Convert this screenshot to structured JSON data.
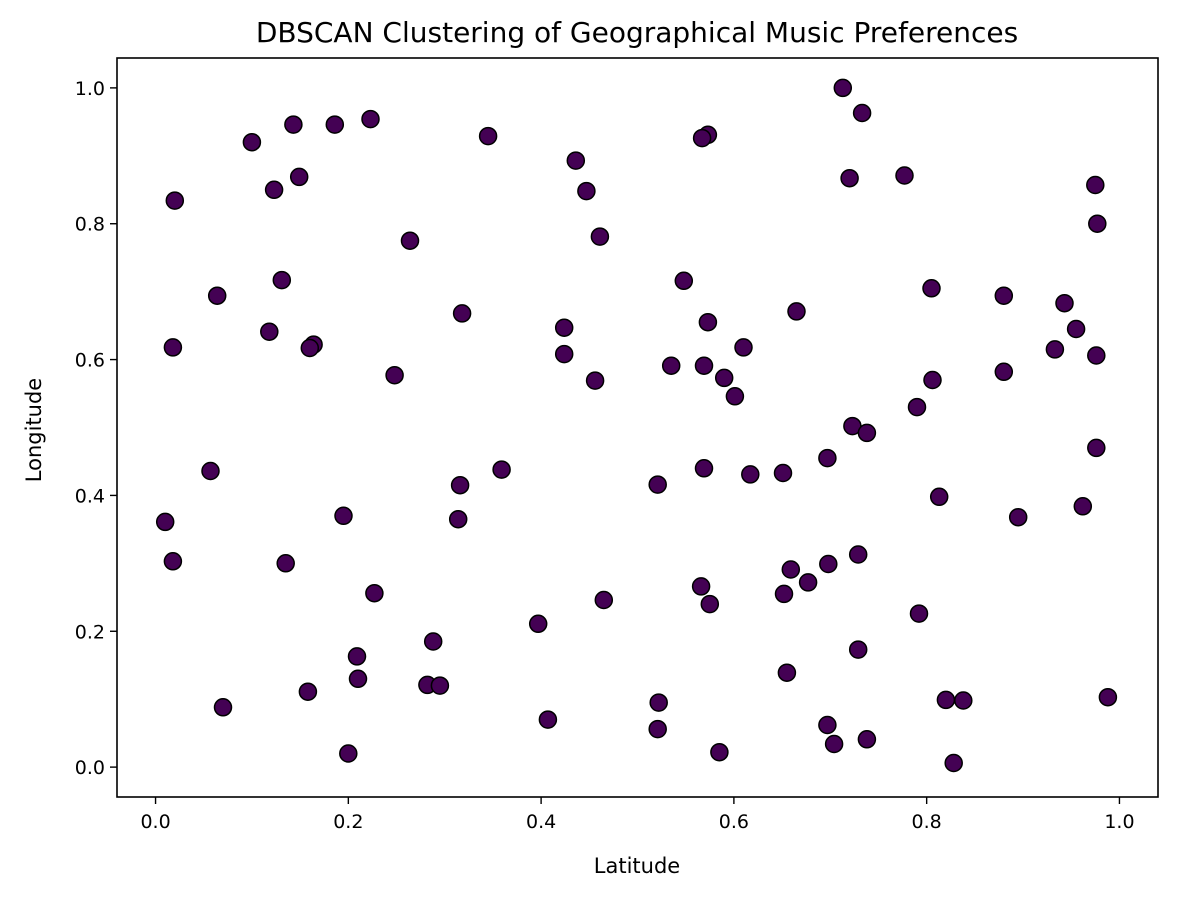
{
  "chart_data": {
    "type": "scatter",
    "title": "DBSCAN Clustering of Geographical Music Preferences",
    "xlabel": "Latitude",
    "ylabel": "Longitude",
    "xlim": [
      -0.04,
      1.04
    ],
    "ylim": [
      -0.044,
      1.044
    ],
    "xticks": [
      0.0,
      0.2,
      0.4,
      0.6,
      0.8,
      1.0
    ],
    "yticks": [
      0.0,
      0.2,
      0.4,
      0.6,
      0.8,
      1.0
    ],
    "xtick_labels": [
      "0.0",
      "0.2",
      "0.4",
      "0.6",
      "0.8",
      "1.0"
    ],
    "ytick_labels": [
      "0.0",
      "0.2",
      "0.4",
      "0.6",
      "0.8",
      "1.0"
    ],
    "grid": false,
    "marker_color": "#440154",
    "marker_edge": "#000000",
    "points": [
      {
        "x": 0.713,
        "y": 1.0
      },
      {
        "x": 0.733,
        "y": 0.963
      },
      {
        "x": 0.223,
        "y": 0.954
      },
      {
        "x": 0.186,
        "y": 0.946
      },
      {
        "x": 0.143,
        "y": 0.946
      },
      {
        "x": 0.573,
        "y": 0.931
      },
      {
        "x": 0.345,
        "y": 0.929
      },
      {
        "x": 0.567,
        "y": 0.926
      },
      {
        "x": 0.1,
        "y": 0.92
      },
      {
        "x": 0.436,
        "y": 0.893
      },
      {
        "x": 0.777,
        "y": 0.871
      },
      {
        "x": 0.149,
        "y": 0.869
      },
      {
        "x": 0.72,
        "y": 0.867
      },
      {
        "x": 0.975,
        "y": 0.857
      },
      {
        "x": 0.123,
        "y": 0.85
      },
      {
        "x": 0.447,
        "y": 0.848
      },
      {
        "x": 0.02,
        "y": 0.834
      },
      {
        "x": 0.977,
        "y": 0.8
      },
      {
        "x": 0.461,
        "y": 0.781
      },
      {
        "x": 0.264,
        "y": 0.775
      },
      {
        "x": 0.131,
        "y": 0.717
      },
      {
        "x": 0.548,
        "y": 0.716
      },
      {
        "x": 0.805,
        "y": 0.705
      },
      {
        "x": 0.064,
        "y": 0.694
      },
      {
        "x": 0.88,
        "y": 0.694
      },
      {
        "x": 0.943,
        "y": 0.683
      },
      {
        "x": 0.665,
        "y": 0.671
      },
      {
        "x": 0.318,
        "y": 0.668
      },
      {
        "x": 0.573,
        "y": 0.655
      },
      {
        "x": 0.424,
        "y": 0.647
      },
      {
        "x": 0.955,
        "y": 0.645
      },
      {
        "x": 0.118,
        "y": 0.641
      },
      {
        "x": 0.164,
        "y": 0.622
      },
      {
        "x": 0.018,
        "y": 0.618
      },
      {
        "x": 0.61,
        "y": 0.618
      },
      {
        "x": 0.16,
        "y": 0.617
      },
      {
        "x": 0.933,
        "y": 0.615
      },
      {
        "x": 0.424,
        "y": 0.608
      },
      {
        "x": 0.976,
        "y": 0.606
      },
      {
        "x": 0.535,
        "y": 0.591
      },
      {
        "x": 0.569,
        "y": 0.591
      },
      {
        "x": 0.88,
        "y": 0.582
      },
      {
        "x": 0.248,
        "y": 0.577
      },
      {
        "x": 0.59,
        "y": 0.573
      },
      {
        "x": 0.456,
        "y": 0.569
      },
      {
        "x": 0.806,
        "y": 0.57
      },
      {
        "x": 0.601,
        "y": 0.546
      },
      {
        "x": 0.79,
        "y": 0.53
      },
      {
        "x": 0.723,
        "y": 0.502
      },
      {
        "x": 0.738,
        "y": 0.492
      },
      {
        "x": 0.976,
        "y": 0.47
      },
      {
        "x": 0.697,
        "y": 0.455
      },
      {
        "x": 0.569,
        "y": 0.44
      },
      {
        "x": 0.359,
        "y": 0.438
      },
      {
        "x": 0.057,
        "y": 0.436
      },
      {
        "x": 0.651,
        "y": 0.433
      },
      {
        "x": 0.617,
        "y": 0.431
      },
      {
        "x": 0.521,
        "y": 0.416
      },
      {
        "x": 0.316,
        "y": 0.415
      },
      {
        "x": 0.813,
        "y": 0.398
      },
      {
        "x": 0.962,
        "y": 0.384
      },
      {
        "x": 0.195,
        "y": 0.37
      },
      {
        "x": 0.895,
        "y": 0.368
      },
      {
        "x": 0.314,
        "y": 0.365
      },
      {
        "x": 0.01,
        "y": 0.361
      },
      {
        "x": 0.729,
        "y": 0.313
      },
      {
        "x": 0.018,
        "y": 0.303
      },
      {
        "x": 0.135,
        "y": 0.3
      },
      {
        "x": 0.698,
        "y": 0.299
      },
      {
        "x": 0.659,
        "y": 0.291
      },
      {
        "x": 0.677,
        "y": 0.272
      },
      {
        "x": 0.566,
        "y": 0.266
      },
      {
        "x": 0.227,
        "y": 0.256
      },
      {
        "x": 0.652,
        "y": 0.255
      },
      {
        "x": 0.465,
        "y": 0.246
      },
      {
        "x": 0.575,
        "y": 0.24
      },
      {
        "x": 0.792,
        "y": 0.226
      },
      {
        "x": 0.397,
        "y": 0.211
      },
      {
        "x": 0.288,
        "y": 0.185
      },
      {
        "x": 0.729,
        "y": 0.173
      },
      {
        "x": 0.209,
        "y": 0.163
      },
      {
        "x": 0.655,
        "y": 0.139
      },
      {
        "x": 0.21,
        "y": 0.13
      },
      {
        "x": 0.282,
        "y": 0.121
      },
      {
        "x": 0.295,
        "y": 0.12
      },
      {
        "x": 0.158,
        "y": 0.111
      },
      {
        "x": 0.988,
        "y": 0.103
      },
      {
        "x": 0.82,
        "y": 0.099
      },
      {
        "x": 0.838,
        "y": 0.098
      },
      {
        "x": 0.522,
        "y": 0.095
      },
      {
        "x": 0.07,
        "y": 0.088
      },
      {
        "x": 0.407,
        "y": 0.07
      },
      {
        "x": 0.697,
        "y": 0.062
      },
      {
        "x": 0.521,
        "y": 0.056
      },
      {
        "x": 0.738,
        "y": 0.041
      },
      {
        "x": 0.704,
        "y": 0.034
      },
      {
        "x": 0.585,
        "y": 0.022
      },
      {
        "x": 0.2,
        "y": 0.02
      },
      {
        "x": 0.828,
        "y": 0.006
      }
    ]
  }
}
